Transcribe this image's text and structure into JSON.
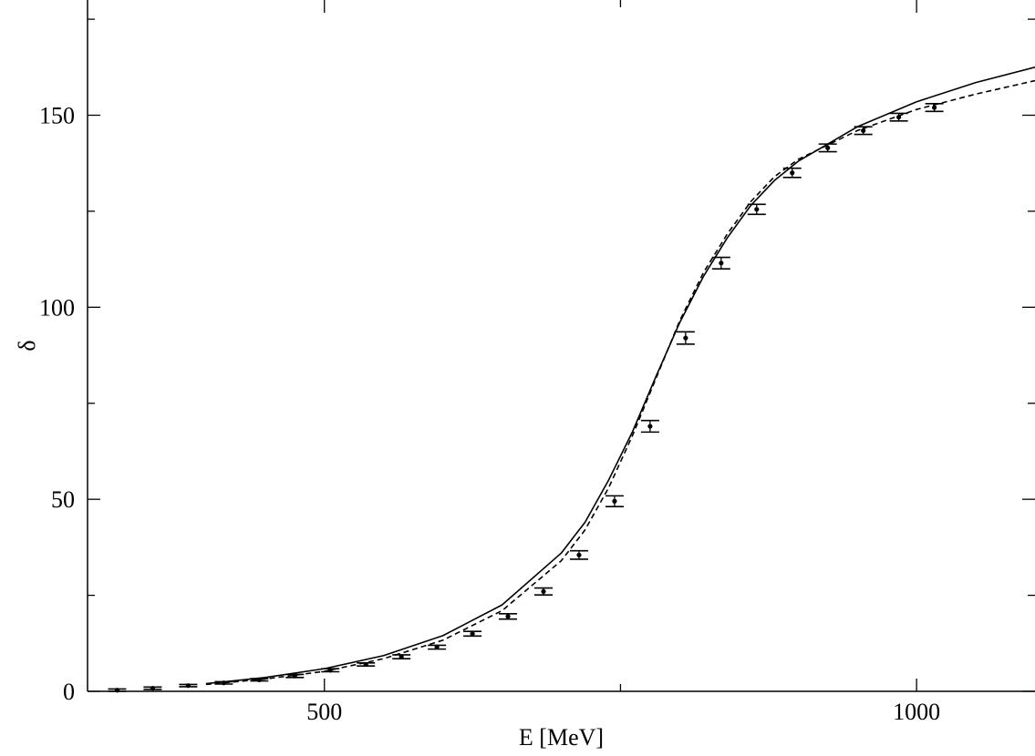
{
  "chart_data": {
    "type": "scatter",
    "title": "",
    "xlabel": "E [MeV]",
    "ylabel": "δ",
    "xlim": [
      300,
      1100
    ],
    "ylim": [
      0,
      180
    ],
    "grid": false,
    "x_ticks": [
      500,
      1000
    ],
    "x_minor_ticks": [
      750
    ],
    "y_ticks": [
      0,
      50,
      100,
      150
    ],
    "y_minor_ticks": [
      25,
      75,
      125,
      175
    ],
    "x_tick_labels": [
      "500",
      "1000"
    ],
    "y_tick_labels": [
      "0",
      "50",
      "100",
      "150"
    ],
    "series": [
      {
        "style": "points-with-errorbars",
        "points": [
          {
            "x": 325,
            "y": 0.3,
            "err": 0.3
          },
          {
            "x": 355,
            "y": 0.8,
            "err": 0.3
          },
          {
            "x": 385,
            "y": 1.5,
            "err": 0.3
          },
          {
            "x": 415,
            "y": 2.2,
            "err": 0.3
          },
          {
            "x": 445,
            "y": 3.0,
            "err": 0.3
          },
          {
            "x": 475,
            "y": 4.0,
            "err": 0.4
          },
          {
            "x": 505,
            "y": 5.5,
            "err": 0.4
          },
          {
            "x": 535,
            "y": 7.0,
            "err": 0.4
          },
          {
            "x": 565,
            "y": 9.0,
            "err": 0.5
          },
          {
            "x": 595,
            "y": 11.5,
            "err": 0.5
          },
          {
            "x": 625,
            "y": 15.0,
            "err": 0.6
          },
          {
            "x": 655,
            "y": 19.5,
            "err": 0.7
          },
          {
            "x": 685,
            "y": 26.0,
            "err": 0.9
          },
          {
            "x": 715,
            "y": 35.5,
            "err": 1.1
          },
          {
            "x": 745,
            "y": 49.5,
            "err": 1.4
          },
          {
            "x": 775,
            "y": 69.0,
            "err": 1.5
          },
          {
            "x": 805,
            "y": 92.0,
            "err": 1.6
          },
          {
            "x": 835,
            "y": 111.5,
            "err": 1.5
          },
          {
            "x": 865,
            "y": 125.5,
            "err": 1.3
          },
          {
            "x": 895,
            "y": 135.0,
            "err": 1.2
          },
          {
            "x": 925,
            "y": 141.5,
            "err": 1.0
          },
          {
            "x": 955,
            "y": 146.0,
            "err": 1.0
          },
          {
            "x": 985,
            "y": 149.5,
            "err": 1.0
          },
          {
            "x": 1015,
            "y": 152.0,
            "err": 1.0
          }
        ]
      },
      {
        "style": "solid-line",
        "x": [
          400,
          450,
          500,
          550,
          600,
          650,
          700,
          720,
          740,
          760,
          780,
          800,
          820,
          840,
          860,
          880,
          900,
          950,
          1000,
          1050,
          1100
        ],
        "y": [
          2.0,
          3.6,
          5.9,
          9.3,
          14.5,
          22.5,
          36.0,
          44.0,
          55.0,
          67.5,
          82.0,
          96.0,
          108.0,
          118.0,
          126.5,
          133.0,
          138.0,
          147.0,
          153.5,
          158.5,
          162.5
        ]
      },
      {
        "style": "dashed-line",
        "x": [
          400,
          450,
          500,
          550,
          600,
          650,
          700,
          720,
          740,
          760,
          780,
          800,
          820,
          840,
          860,
          880,
          900,
          950,
          1000,
          1050,
          1100
        ],
        "y": [
          1.8,
          3.2,
          5.2,
          8.5,
          13.3,
          21.0,
          34.0,
          42.0,
          53.0,
          66.5,
          81.5,
          96.5,
          109.0,
          119.0,
          127.5,
          134.0,
          138.5,
          146.0,
          151.5,
          155.5,
          159.0
        ]
      }
    ]
  }
}
